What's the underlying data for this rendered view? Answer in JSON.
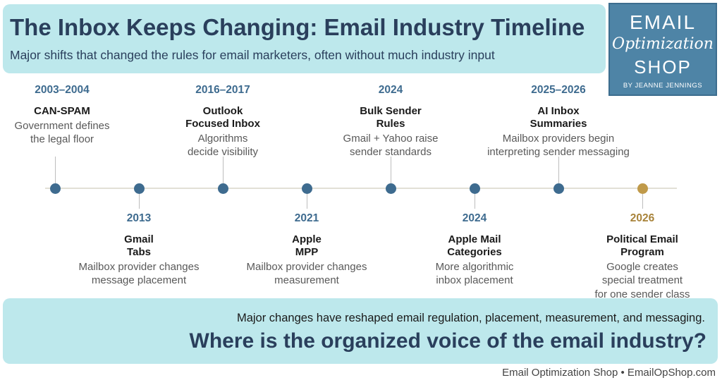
{
  "header": {
    "title": "The Inbox Keeps Changing: Email Industry Timeline",
    "subtitle": "Major shifts that changed the rules for email marketers, often without much industry input"
  },
  "logo": {
    "line1": "EMAIL",
    "line2": "Optimization",
    "line3": "SHOP",
    "byline": "BY JEANNE JENNINGS"
  },
  "events": [
    {
      "year": "2003–2004",
      "name": "CAN-SPAM",
      "desc": "Government defines\nthe legal floor",
      "color": "#3e6b8f"
    },
    {
      "year": "2013",
      "name": "Gmail\nTabs",
      "desc": "Mailbox provider changes\nmessage placement",
      "color": "#3e6b8f"
    },
    {
      "year": "2016–2017",
      "name": "Outlook\nFocused Inbox",
      "desc": "Algorithms\ndecide visibility",
      "color": "#3e6b8f"
    },
    {
      "year": "2021",
      "name": "Apple\nMPP",
      "desc": "Mailbox provider changes\nmeasurement",
      "color": "#3e6b8f"
    },
    {
      "year": "2024",
      "name": "Bulk Sender\nRules",
      "desc": "Gmail + Yahoo raise\nsender standards",
      "color": "#3e6b8f"
    },
    {
      "year": "2024",
      "name": "Apple Mail\nCategories",
      "desc": "More algorithmic\ninbox placement",
      "color": "#3e6b8f"
    },
    {
      "year": "2025–2026",
      "name": "AI Inbox\nSummaries",
      "desc": "Mailbox providers begin\ninterpreting sender messaging",
      "color": "#3e6b8f"
    },
    {
      "year": "2026",
      "name": "Political Email\nProgram",
      "desc": "Google creates\nspecial treatment\nfor one sender class",
      "color": "#c09a4a"
    }
  ],
  "footer": {
    "line1": "Major changes have reshaped email regulation, placement, measurement, and messaging.",
    "line2": "Where is the organized voice of the email industry?"
  },
  "credit": "Email Optimization Shop  •  EmailOpShop.com"
}
